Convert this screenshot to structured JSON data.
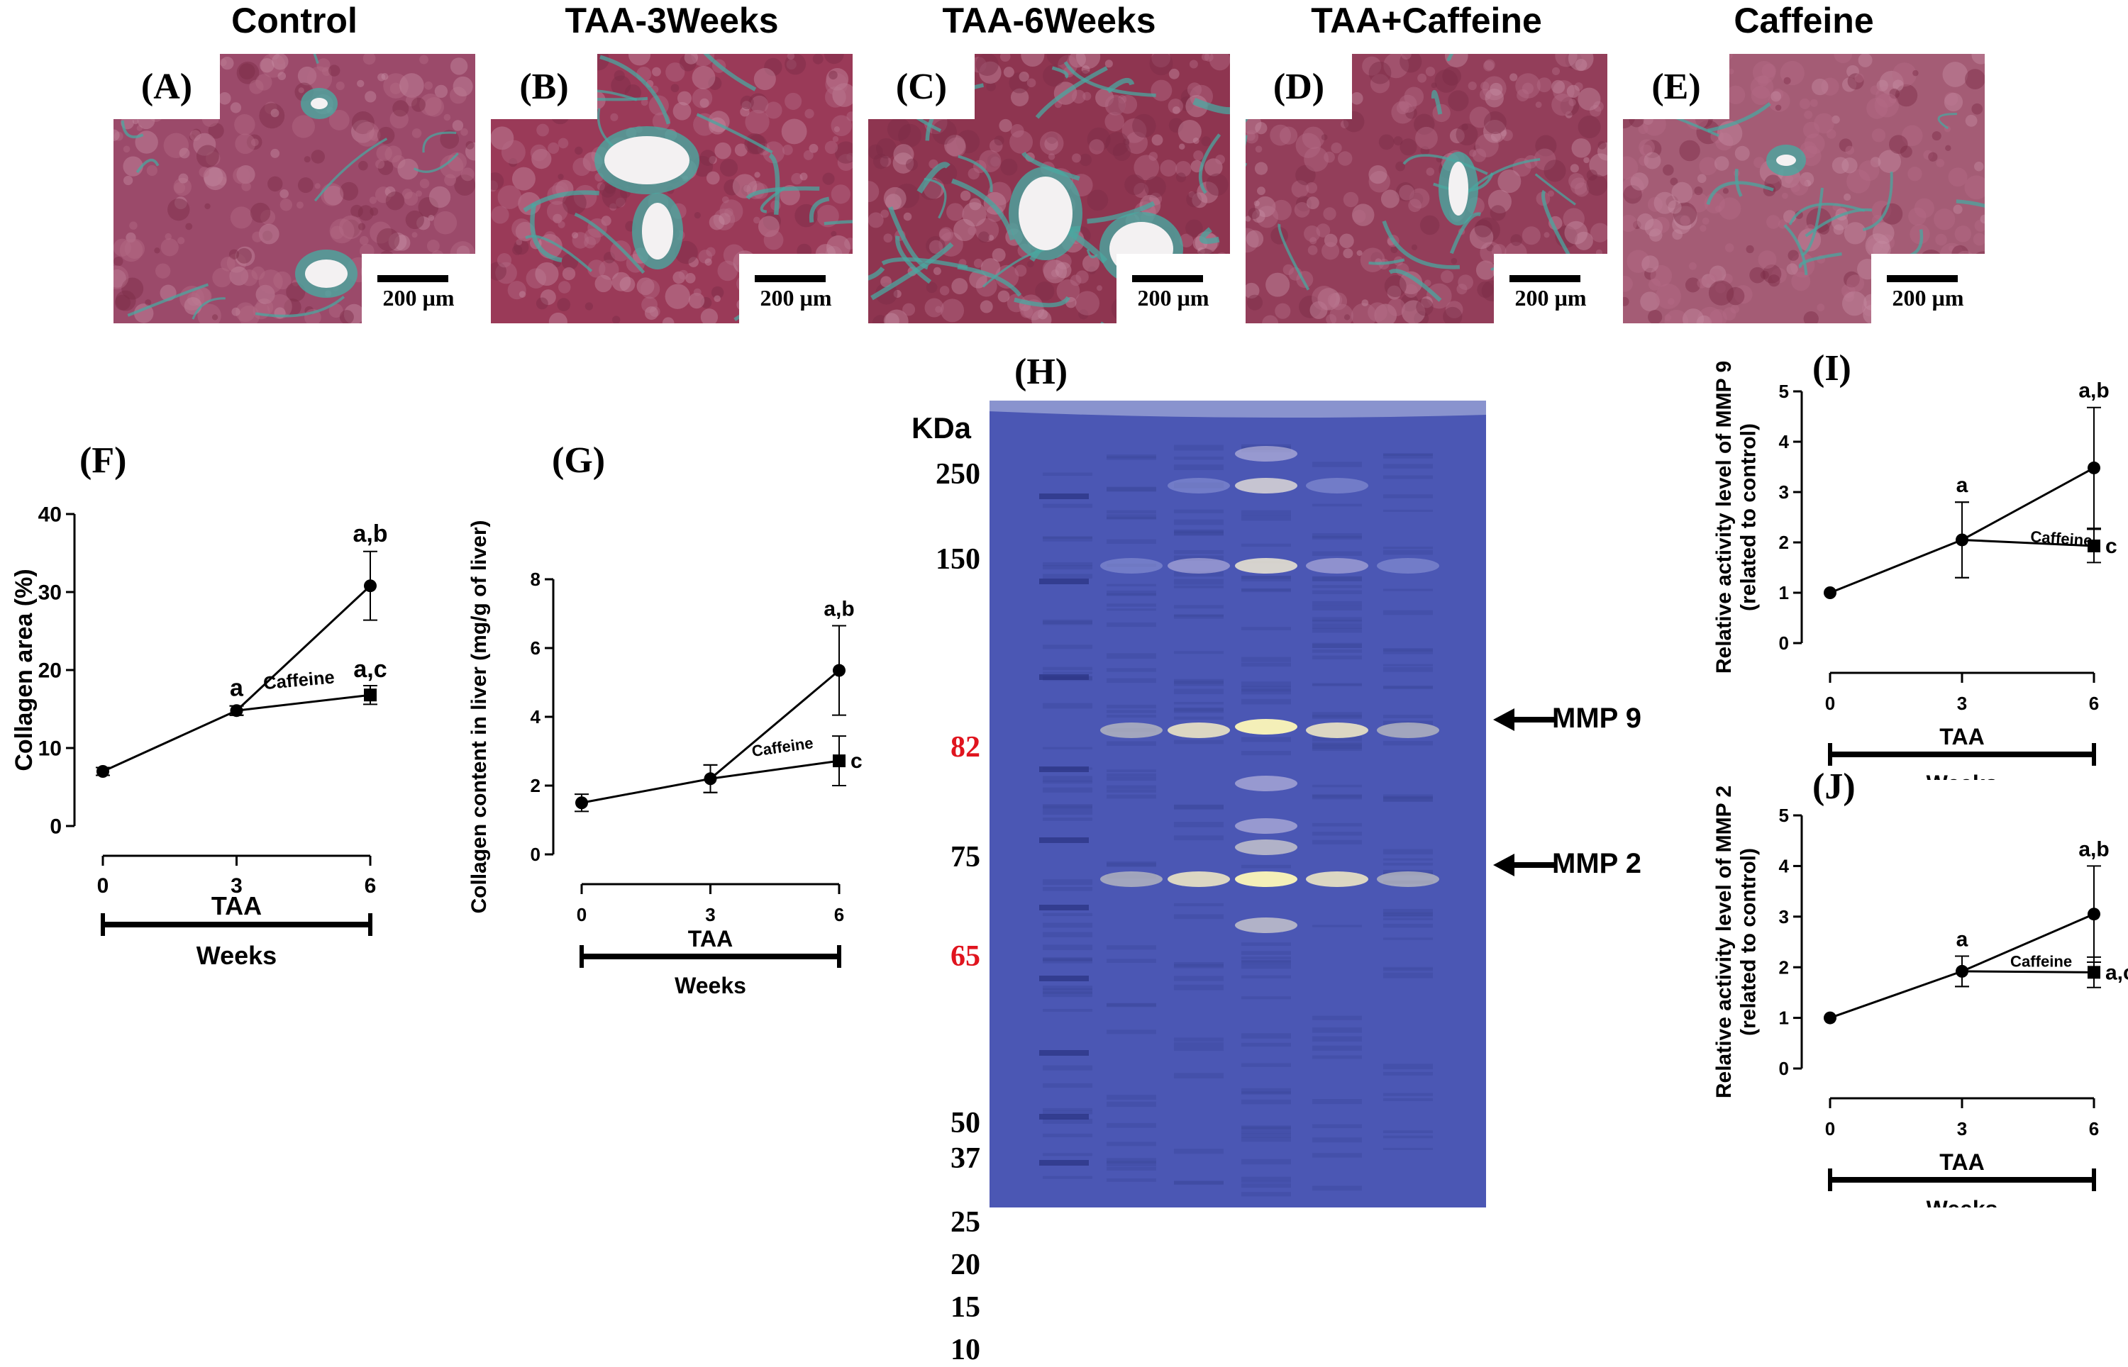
{
  "micrographs": [
    {
      "title": "Control",
      "letter": "(A)",
      "scale": "200 µm"
    },
    {
      "title": "TAA-3Weeks",
      "letter": "(B)",
      "scale": "200 µm"
    },
    {
      "title": "TAA-6Weeks",
      "letter": "(C)",
      "scale": "200 µm"
    },
    {
      "title": "TAA+Caffeine",
      "letter": "(D)",
      "scale": "200 µm"
    },
    {
      "title": "Caffeine",
      "letter": "(E)",
      "scale": "200 µm"
    }
  ],
  "colors": {
    "tissue": "#9c3f5c",
    "fibrosis": "#4aa7a0",
    "gel": "#4b57b4",
    "marker_red": "#e0141e"
  },
  "chart_data": [
    {
      "id": "F",
      "letter": "(F)",
      "type": "line",
      "ylabel": "Collagen area (%)",
      "ylim": [
        0,
        40
      ],
      "yticks": [
        0,
        10,
        20,
        30,
        40
      ],
      "xticks": [
        0,
        3,
        6
      ],
      "xgroup": "TAA",
      "xunit": "Weeks",
      "series": [
        {
          "x": [
            0,
            3,
            6
          ],
          "y": [
            7,
            14.8,
            30.8
          ],
          "err": [
            0.5,
            0.6,
            4.4
          ],
          "marker": "circle",
          "labels": [
            "",
            "a",
            "a,b"
          ]
        },
        {
          "name": "Caffeine",
          "x": [
            3,
            6
          ],
          "y": [
            14.8,
            16.8
          ],
          "err": [
            0.6,
            1.2
          ],
          "marker": "square",
          "labels": [
            "",
            "a,c"
          ]
        }
      ]
    },
    {
      "id": "G",
      "letter": "(G)",
      "type": "line",
      "ylabel": "Collagen content in liver (mg/g of liver)",
      "ylim": [
        0,
        8
      ],
      "yticks": [
        0,
        2,
        4,
        6,
        8
      ],
      "xticks": [
        0,
        3,
        6
      ],
      "xgroup": "TAA",
      "xunit": "Weeks",
      "series": [
        {
          "x": [
            0,
            3,
            6
          ],
          "y": [
            1.5,
            2.2,
            5.35
          ],
          "err": [
            0.25,
            0.4,
            1.3
          ],
          "marker": "circle",
          "labels": [
            "",
            "",
            "a,b"
          ]
        },
        {
          "name": "Caffeine",
          "x": [
            3,
            6
          ],
          "y": [
            2.2,
            2.72
          ],
          "err": [
            0.4,
            0.72
          ],
          "marker": "square",
          "labels": [
            "",
            "c"
          ]
        }
      ]
    },
    {
      "id": "I",
      "letter": "(I)",
      "type": "line",
      "ylabel": "Relative activity level of MMP 9 (related to control)",
      "ylim": [
        0,
        5
      ],
      "yticks": [
        0,
        1,
        2,
        3,
        4,
        5
      ],
      "xticks": [
        0,
        3,
        6
      ],
      "xgroup": "TAA",
      "xunit": "Weeks",
      "series": [
        {
          "x": [
            0,
            3,
            6
          ],
          "y": [
            1.0,
            2.05,
            3.48
          ],
          "err": [
            0,
            0.75,
            1.2
          ],
          "marker": "circle",
          "labels": [
            "",
            "a",
            "a,b"
          ]
        },
        {
          "name": "Caffeine",
          "x": [
            3,
            6
          ],
          "y": [
            2.05,
            1.93
          ],
          "err": [
            0.75,
            0.33
          ],
          "marker": "square",
          "labels": [
            "",
            "c"
          ]
        }
      ]
    },
    {
      "id": "J",
      "letter": "(J)",
      "type": "line",
      "ylabel": "Relative activity level of MMP 2 (related to control)",
      "ylim": [
        0,
        5
      ],
      "yticks": [
        0,
        1,
        2,
        3,
        4,
        5
      ],
      "xticks": [
        0,
        3,
        6
      ],
      "xgroup": "TAA",
      "xunit": "Weeks",
      "series": [
        {
          "x": [
            0,
            3,
            6
          ],
          "y": [
            1.0,
            1.92,
            3.05
          ],
          "err": [
            0,
            0.3,
            0.95
          ],
          "marker": "circle",
          "labels": [
            "",
            "a",
            "a,b"
          ]
        },
        {
          "name": "Caffeine",
          "x": [
            3,
            6
          ],
          "y": [
            1.92,
            1.9
          ],
          "err": [
            0.3,
            0.3
          ],
          "marker": "square",
          "labels": [
            "",
            "a,c"
          ]
        }
      ]
    }
  ],
  "gel": {
    "letter": "(H)",
    "header": "KDa",
    "markers": [
      {
        "label": "250",
        "red": false
      },
      {
        "label": "150",
        "red": false
      },
      {
        "label": "82",
        "red": true
      },
      {
        "label": "75",
        "red": false
      },
      {
        "label": "65",
        "red": true
      },
      {
        "label": "50",
        "red": false
      },
      {
        "label": "37",
        "red": false
      },
      {
        "label": "25",
        "red": false
      },
      {
        "label": "20",
        "red": false
      },
      {
        "label": "15",
        "red": false
      },
      {
        "label": "10",
        "red": false
      }
    ],
    "arrows": [
      {
        "label": "MMP 9"
      },
      {
        "label": "MMP 2"
      }
    ]
  }
}
